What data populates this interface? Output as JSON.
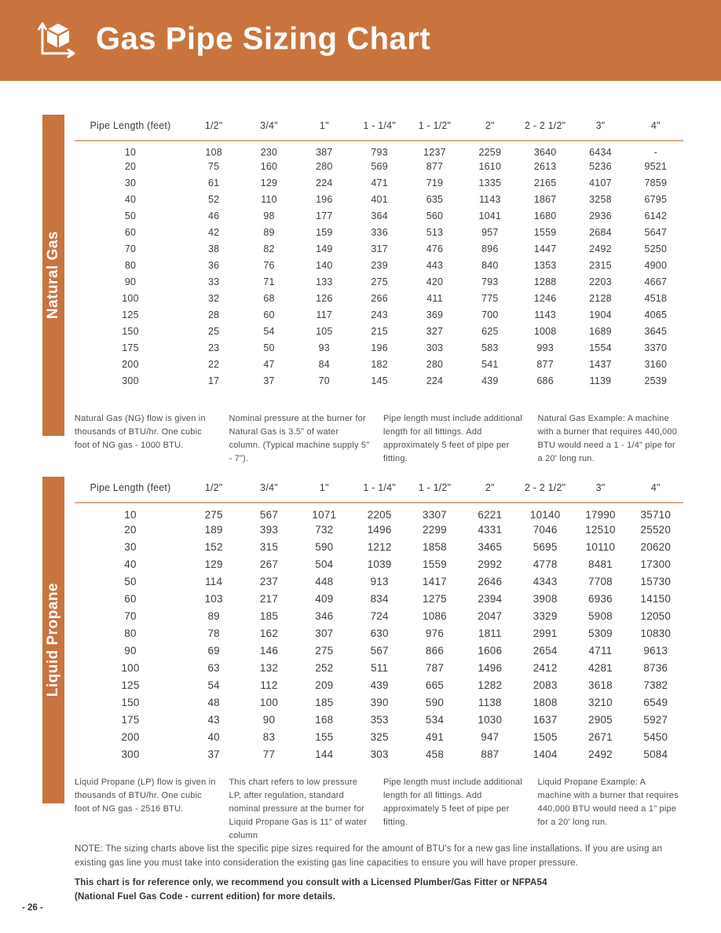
{
  "page": {
    "title": "Gas Pipe Sizing Chart",
    "page_number": "- 26 -",
    "note": "NOTE: The sizing charts above list the specific pipe sizes required for the amount of BTU's for a new gas line installations. If you are using an existing gas line you must take into consideration the existing gas line capacities to ensure you will have proper pressure.",
    "disclaimer": "This chart is for reference only, we recommend you consult with a Licensed Plumber/Gas Fitter or NFPA54 (National Fuel Gas Code - current edition) for more details."
  },
  "colors": {
    "accent_orange": "#c9743e",
    "rule_tan": "#ddab85",
    "text_dark": "#3d3d3d",
    "text_gray": "#4f4f4f"
  },
  "tables": [
    {
      "sidebar_label": "Natural Gas",
      "columns": [
        "Pipe Length (feet)",
        "1/2\"",
        "3/4\"",
        "1\"",
        "1 - 1/4\"",
        "1 - 1/2\"",
        "2\"",
        "2 - 2 1/2\"",
        "3\"",
        "4\""
      ],
      "rows": [
        [
          "10",
          "108",
          "230",
          "387",
          "793",
          "1237",
          "2259",
          "3640",
          "6434",
          "-"
        ],
        [
          "20",
          "75",
          "160",
          "280",
          "569",
          "877",
          "1610",
          "2613",
          "5236",
          "9521"
        ],
        [
          "30",
          "61",
          "129",
          "224",
          "471",
          "719",
          "1335",
          "2165",
          "4107",
          "7859"
        ],
        [
          "40",
          "52",
          "110",
          "196",
          "401",
          "635",
          "1143",
          "1867",
          "3258",
          "6795"
        ],
        [
          "50",
          "46",
          "98",
          "177",
          "364",
          "560",
          "1041",
          "1680",
          "2936",
          "6142"
        ],
        [
          "60",
          "42",
          "89",
          "159",
          "336",
          "513",
          "957",
          "1559",
          "2684",
          "5647"
        ],
        [
          "70",
          "38",
          "82",
          "149",
          "317",
          "476",
          "896",
          "1447",
          "2492",
          "5250"
        ],
        [
          "80",
          "36",
          "76",
          "140",
          "239",
          "443",
          "840",
          "1353",
          "2315",
          "4900"
        ],
        [
          "90",
          "33",
          "71",
          "133",
          "275",
          "420",
          "793",
          "1288",
          "2203",
          "4667"
        ],
        [
          "100",
          "32",
          "68",
          "126",
          "266",
          "411",
          "775",
          "1246",
          "2128",
          "4518"
        ],
        [
          "125",
          "28",
          "60",
          "117",
          "243",
          "369",
          "700",
          "1143",
          "1904",
          "4065"
        ],
        [
          "150",
          "25",
          "54",
          "105",
          "215",
          "327",
          "625",
          "1008",
          "1689",
          "3645"
        ],
        [
          "175",
          "23",
          "50",
          "93",
          "196",
          "303",
          "583",
          "993",
          "1554",
          "3370"
        ],
        [
          "200",
          "22",
          "47",
          "84",
          "182",
          "280",
          "541",
          "877",
          "1437",
          "3160"
        ],
        [
          "300",
          "17",
          "37",
          "70",
          "145",
          "224",
          "439",
          "686",
          "1139",
          "2539"
        ]
      ],
      "footnotes": [
        "Natural Gas (NG) flow is given in thousands of BTU/hr. One cubic foot of NG gas - 1000 BTU.",
        "Nominal pressure at the burner for Natural Gas is 3.5\" of water column. (Typical machine supply 5\" - 7\").",
        "Pipe length must include additional length for all fittings. Add approximately 5 feet of pipe per fitting.",
        "Natural Gas Example: A machine with a burner that requires 440,000 BTU would need a 1 - 1/4\" pipe for a 20' long run."
      ]
    },
    {
      "sidebar_label": "Liquid Propane",
      "columns": [
        "Pipe Length (feet)",
        "1/2\"",
        "3/4\"",
        "1\"",
        "1 - 1/4\"",
        "1 - 1/2\"",
        "2\"",
        "2 - 2 1/2\"",
        "3\"",
        "4\""
      ],
      "rows": [
        [
          "10",
          "275",
          "567",
          "1071",
          "2205",
          "3307",
          "6221",
          "10140",
          "17990",
          "35710"
        ],
        [
          "20",
          "189",
          "393",
          "732",
          "1496",
          "2299",
          "4331",
          "7046",
          "12510",
          "25520"
        ],
        [
          "30",
          "152",
          "315",
          "590",
          "1212",
          "1858",
          "3465",
          "5695",
          "10110",
          "20620"
        ],
        [
          "40",
          "129",
          "267",
          "504",
          "1039",
          "1559",
          "2992",
          "4778",
          "8481",
          "17300"
        ],
        [
          "50",
          "114",
          "237",
          "448",
          "913",
          "1417",
          "2646",
          "4343",
          "7708",
          "15730"
        ],
        [
          "60",
          "103",
          "217",
          "409",
          "834",
          "1275",
          "2394",
          "3908",
          "6936",
          "14150"
        ],
        [
          "70",
          "89",
          "185",
          "346",
          "724",
          "1086",
          "2047",
          "3329",
          "5908",
          "12050"
        ],
        [
          "80",
          "78",
          "162",
          "307",
          "630",
          "976",
          "1811",
          "2991",
          "5309",
          "10830"
        ],
        [
          "90",
          "69",
          "146",
          "275",
          "567",
          "866",
          "1606",
          "2654",
          "4711",
          "9613"
        ],
        [
          "100",
          "63",
          "132",
          "252",
          "511",
          "787",
          "1496",
          "2412",
          "4281",
          "8736"
        ],
        [
          "125",
          "54",
          "112",
          "209",
          "439",
          "665",
          "1282",
          "2083",
          "3618",
          "7382"
        ],
        [
          "150",
          "48",
          "100",
          "185",
          "390",
          "590",
          "1138",
          "1808",
          "3210",
          "6549"
        ],
        [
          "175",
          "43",
          "90",
          "168",
          "353",
          "534",
          "1030",
          "1637",
          "2905",
          "5927"
        ],
        [
          "200",
          "40",
          "83",
          "155",
          "325",
          "491",
          "947",
          "1505",
          "2671",
          "5450"
        ],
        [
          "300",
          "37",
          "77",
          "144",
          "303",
          "458",
          "887",
          "1404",
          "2492",
          "5084"
        ]
      ],
      "footnotes": [
        "Liquid Propane (LP) flow is given in thousands of BTU/hr. One cubic foot of NG gas - 2516 BTU.",
        "This chart refers to low pressure LP, after regulation, standard nominal pressure at the burner for Liquid Propane Gas is 11\" of water column",
        "Pipe length must include additional length for all fittings. Add approximately 5 feet of pipe per fitting.",
        "Liquid Propane Example: A machine with a burner that requires 440,000 BTU would need a 1\" pipe for a 20' long run."
      ]
    }
  ]
}
